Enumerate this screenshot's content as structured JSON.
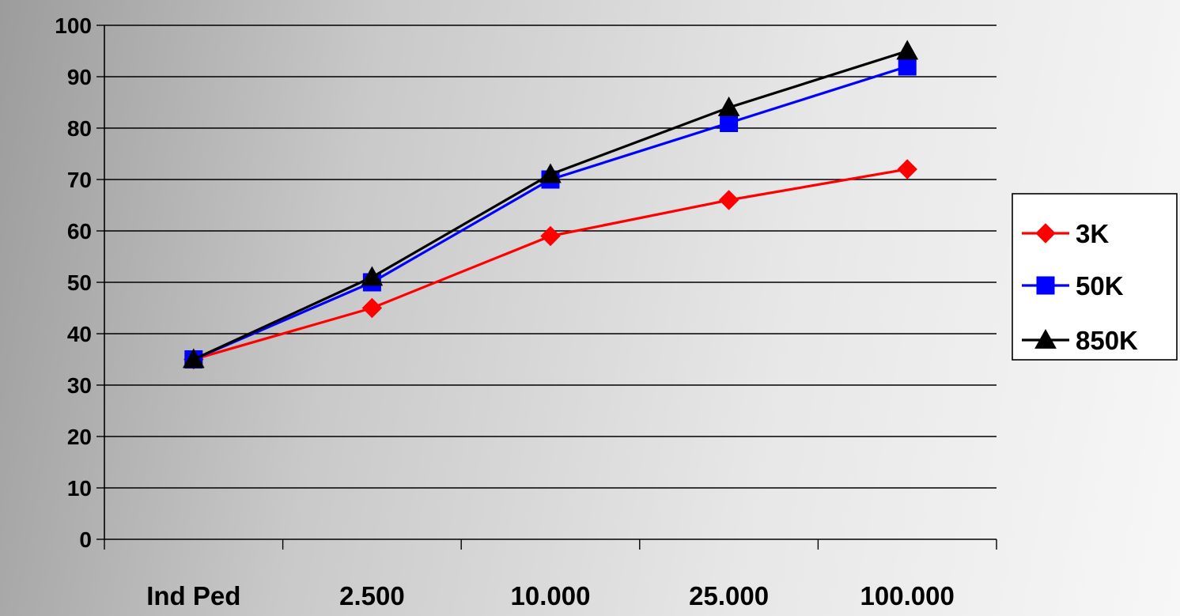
{
  "chart_data": {
    "type": "line",
    "title": "",
    "xlabel": "",
    "ylabel": "",
    "categories": [
      "Ind Ped",
      "2.500",
      "10.000",
      "25.000",
      "100.000"
    ],
    "ylim": [
      0,
      100
    ],
    "yticks": [
      0,
      10,
      20,
      30,
      40,
      50,
      60,
      70,
      80,
      90,
      100
    ],
    "grid": true,
    "legend_position": "right",
    "series": [
      {
        "name": "3K",
        "color": "#ff0000",
        "marker": "diamond",
        "values": [
          35,
          45,
          59,
          66,
          72
        ]
      },
      {
        "name": "50K",
        "color": "#0000ff",
        "marker": "square",
        "values": [
          35,
          50,
          70,
          81,
          92
        ]
      },
      {
        "name": "850K",
        "color": "#000000",
        "marker": "triangle",
        "values": [
          35,
          51,
          71,
          84,
          95
        ]
      }
    ]
  }
}
